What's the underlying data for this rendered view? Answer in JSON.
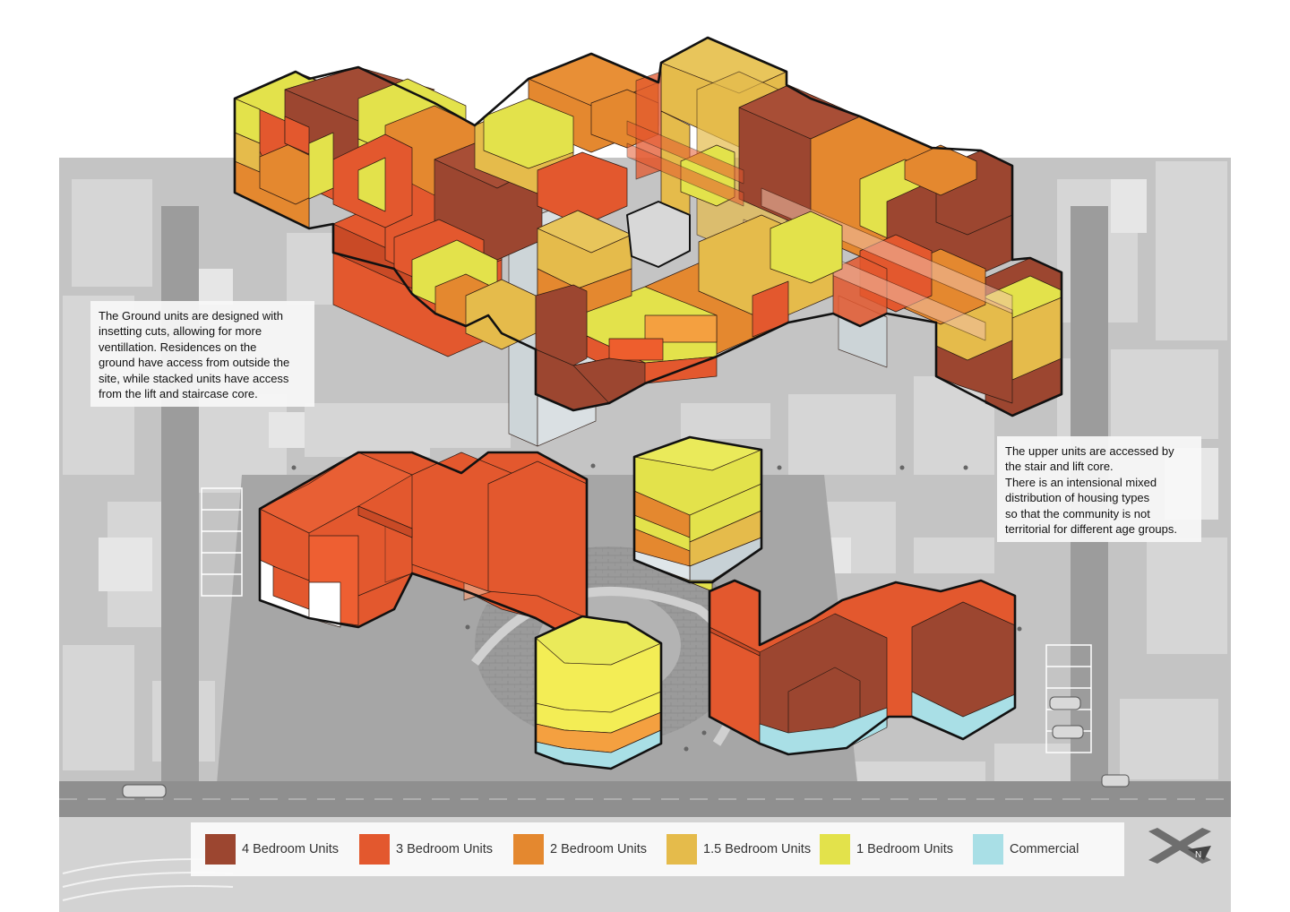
{
  "colors": {
    "four_bedroom": "#9c4630",
    "three_bedroom": "#e3582e",
    "two_bedroom": "#e4882f",
    "one_half_bedroom": "#e5bb4b",
    "one_bedroom": "#e3e24b",
    "commercial": "#a9dfe6",
    "bright_orange": "#f4a040",
    "bright_yellow": "#f3ed55",
    "ground_floor_glass": "#c7d1d6",
    "site_plan_grey": "#b8b8b8"
  },
  "annotations": {
    "ground_units": [
      "The Ground units are designed with",
      "insetting cuts, allowing for more",
      "ventillation. Residences on the",
      "ground have access from outside the",
      "site, while stacked units have access",
      "from the lift and staircase core."
    ],
    "upper_units": [
      "The upper units are accessed by",
      "the stair and lift core.",
      "There is an intensional mixed",
      "distribution of housing types",
      "so that the community is not",
      "territorial for different age groups."
    ]
  },
  "legend": {
    "items": [
      {
        "label": "4 Bedroom Units",
        "color": "#9c4630"
      },
      {
        "label": "3 Bedroom Units",
        "color": "#e3582e"
      },
      {
        "label": "2 Bedroom Units",
        "color": "#e4882f"
      },
      {
        "label": "1.5 Bedroom Units",
        "color": "#e5bb4b"
      },
      {
        "label": "1 Bedroom Units",
        "color": "#e3e24b"
      },
      {
        "label": "Commercial",
        "color": "#a9dfe6"
      }
    ]
  },
  "north_arrow": {
    "label": "N",
    "icon": "north-arrow-icon"
  },
  "diagram": {
    "view": "exploded axonometric of housing blocks over greyscale site plan",
    "upper_block": "stacked upper-floor units around central stair and lift core",
    "ground_blocks": 4
  }
}
